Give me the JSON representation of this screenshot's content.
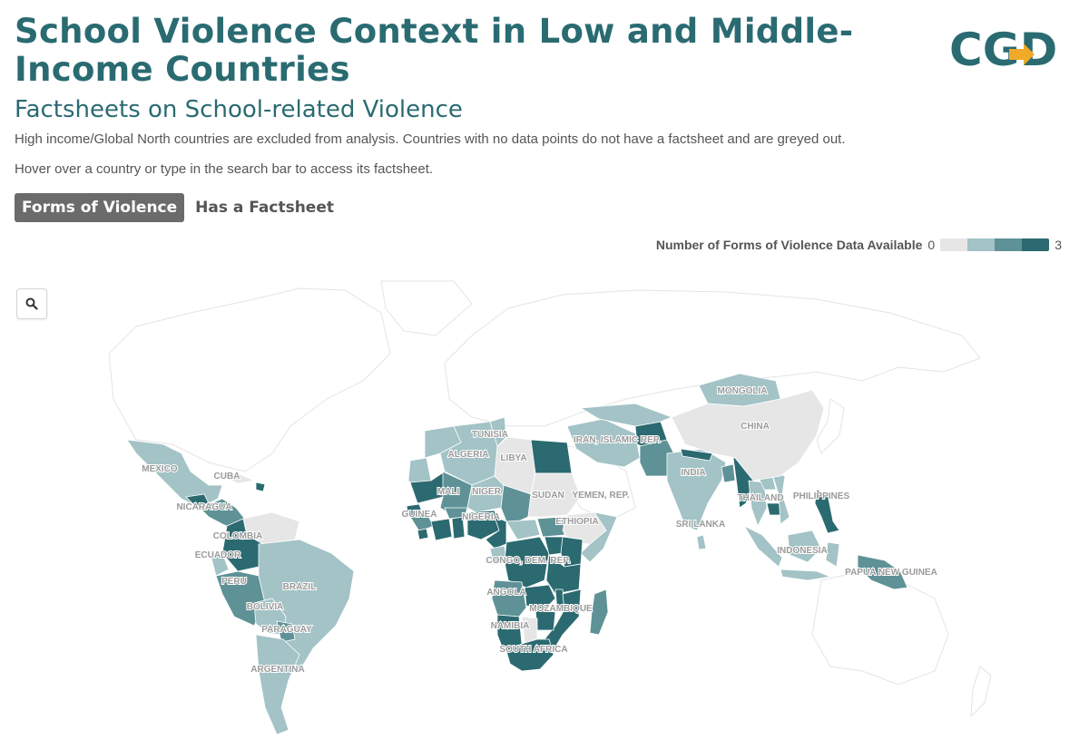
{
  "header": {
    "title": "School Violence Context in Low and Middle-Income Countries",
    "subtitle": "Factsheets on School-related Violence",
    "note_1": "High income/Global North countries are excluded from analysis. Countries with no data points do not have a factsheet and are greyed out.",
    "note_2": "Hover over a country or type in the search bar to access its factsheet.",
    "logo_text": "CGD"
  },
  "tabs": [
    {
      "label": "Forms of Violence",
      "active": true
    },
    {
      "label": "Has a Factsheet",
      "active": false
    }
  ],
  "legend": {
    "title": "Number of Forms of Violence Data Available",
    "min_label": "0",
    "max_label": "3",
    "scale": [
      {
        "level": 0,
        "color": "#e6e6e6"
      },
      {
        "level": 1,
        "color": "#a3c3c6"
      },
      {
        "level": 2,
        "color": "#5e9296"
      },
      {
        "level": 3,
        "color": "#2b6a70"
      }
    ]
  },
  "search": {
    "icon": "search-icon"
  },
  "colors": {
    "brand": "#2a6b72",
    "accent": "#f0a928",
    "no_data": "#e6e6e6",
    "outline": "#e9e9e9"
  },
  "map": {
    "labels": {
      "mongolia": "MONGOLIA",
      "china": "CHINA",
      "tunisia": "TUNISIA",
      "iran": "IRAN, ISLAMIC REP.",
      "algeria": "ALGERIA",
      "libya": "LIBYA",
      "mexico": "MEXICO",
      "cuba": "CUBA",
      "india": "INDIA",
      "mali": "MALI",
      "niger": "NIGER",
      "sudan": "SUDAN",
      "yemen": "YEMEN, REP.",
      "philippines": "PHILIPPINES",
      "nicaragua": "NICARAGUA",
      "thailand": "THAILAND",
      "guinea": "GUINEA",
      "nigeria": "NIGERIA",
      "ethiopia": "ETHIOPIA",
      "sri_lanka": "SRI LANKA",
      "colombia": "COLOMBIA",
      "ecuador": "ECUADOR",
      "congo": "CONGO, DEM. REP.",
      "indonesia": "INDONESIA",
      "peru": "PERU",
      "brazil": "BRAZIL",
      "angola": "ANGOLA",
      "papua": "PAPUA NEW GUINEA",
      "bolivia": "BOLIVIA",
      "mozambique": "MOZAMBIQUE",
      "namibia": "NAMIBIA",
      "paraguay": "PARAGUAY",
      "south_africa": "SOUTH AFRICA",
      "argentina": "ARGENTINA"
    }
  }
}
